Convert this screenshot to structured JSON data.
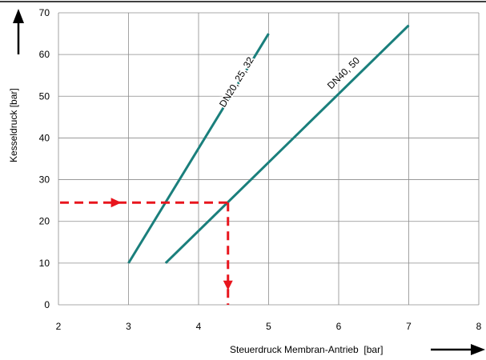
{
  "chart_data": {
    "type": "line",
    "xlabel": "Steuerdruck Membran-Antrieb  [bar]",
    "ylabel": "Kesseldruck [bar]",
    "xlim": [
      2,
      8
    ],
    "ylim": [
      0,
      70
    ],
    "x_ticks": [
      "2",
      "3",
      "4",
      "5",
      "6",
      "7",
      "8"
    ],
    "y_ticks": [
      "0",
      "10",
      "20",
      "30",
      "40",
      "50",
      "60",
      "70"
    ],
    "grid": true,
    "series": [
      {
        "name": "DN20, 25, 32",
        "points": [
          [
            3.0,
            10
          ],
          [
            5.0,
            65
          ]
        ],
        "label_at": [
          4.58,
          53
        ],
        "color": "#1a7f7c"
      },
      {
        "name": "DN40, 50",
        "points": [
          [
            3.53,
            10
          ],
          [
            7.0,
            67
          ]
        ],
        "label_at": [
          6.1,
          55
        ],
        "color": "#1a7f7c"
      }
    ],
    "reading_example": {
      "y_value": 24.5,
      "x_value": 4.42,
      "color": "#e8151d"
    }
  }
}
